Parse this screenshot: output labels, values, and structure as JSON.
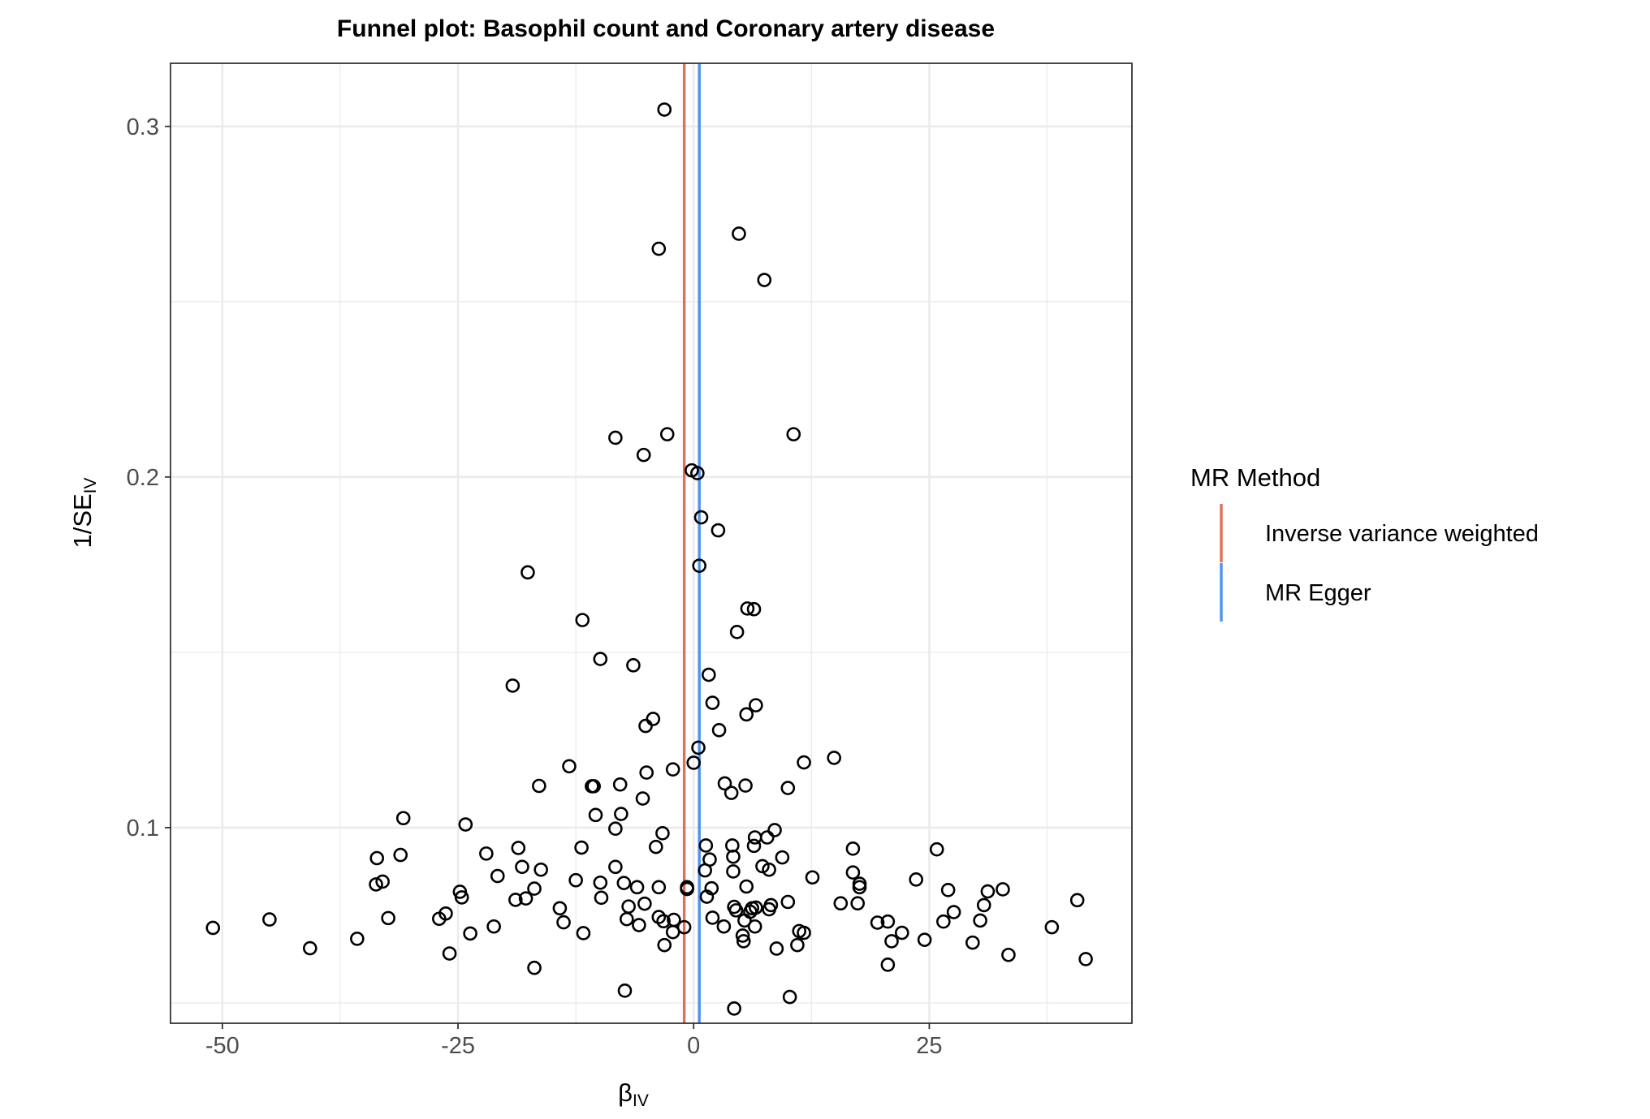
{
  "chart_data": {
    "type": "scatter",
    "title": "Funnel plot: Basophil count and Coronary artery disease",
    "xlabel": {
      "main": "β",
      "sub": "IV"
    },
    "ylabel": {
      "main": "1/SE",
      "sub": "IV"
    },
    "xlim": [
      -55.5,
      46.5
    ],
    "ylim": [
      0.0442,
      0.318
    ],
    "x_ticks": [
      {
        "value": -50,
        "label": "-50"
      },
      {
        "value": -25,
        "label": "-25"
      },
      {
        "value": 0,
        "label": "0"
      },
      {
        "value": 25,
        "label": "25"
      }
    ],
    "x_minor_ticks": [
      -37.5,
      -12.5,
      12.5,
      37.5
    ],
    "y_ticks": [
      {
        "value": 0.1,
        "label": "0.1"
      },
      {
        "value": 0.2,
        "label": "0.2"
      },
      {
        "value": 0.3,
        "label": "0.3"
      }
    ],
    "y_minor_ticks": [
      0.05,
      0.15,
      0.25
    ],
    "grid": true,
    "legend": {
      "title": "MR Method",
      "position": "right",
      "entries": [
        {
          "label": "Inverse variance weighted",
          "color": "#E06E5B"
        },
        {
          "label": "MR Egger",
          "color": "#4C92EE"
        }
      ]
    },
    "vlines": [
      {
        "method": "Inverse variance weighted",
        "x": -1.0,
        "color": "#E06E5B"
      },
      {
        "method": "MR Egger",
        "x": 0.6,
        "color": "#4C92EE"
      }
    ],
    "points": [
      {
        "x": -3.1,
        "y": 0.3048
      },
      {
        "x": 4.8,
        "y": 0.2694
      },
      {
        "x": -3.7,
        "y": 0.2651
      },
      {
        "x": 7.5,
        "y": 0.2562
      },
      {
        "x": -8.3,
        "y": 0.2112
      },
      {
        "x": -2.8,
        "y": 0.2122
      },
      {
        "x": 10.6,
        "y": 0.2122
      },
      {
        "x": -5.3,
        "y": 0.2063
      },
      {
        "x": -0.2,
        "y": 0.2019
      },
      {
        "x": 0.4,
        "y": 0.2011
      },
      {
        "x": 0.8,
        "y": 0.1885
      },
      {
        "x": 2.6,
        "y": 0.1848
      },
      {
        "x": 0.6,
        "y": 0.1747
      },
      {
        "x": -17.6,
        "y": 0.1728
      },
      {
        "x": 5.7,
        "y": 0.1625
      },
      {
        "x": 6.4,
        "y": 0.1623
      },
      {
        "x": -11.8,
        "y": 0.1592
      },
      {
        "x": 4.6,
        "y": 0.1558
      },
      {
        "x": -9.9,
        "y": 0.1481
      },
      {
        "x": -6.4,
        "y": 0.1463
      },
      {
        "x": 1.6,
        "y": 0.1436
      },
      {
        "x": -19.2,
        "y": 0.1405
      },
      {
        "x": 2.0,
        "y": 0.1356
      },
      {
        "x": 6.6,
        "y": 0.1349
      },
      {
        "x": 5.6,
        "y": 0.1323
      },
      {
        "x": -4.3,
        "y": 0.131
      },
      {
        "x": -5.1,
        "y": 0.129
      },
      {
        "x": 2.7,
        "y": 0.1278
      },
      {
        "x": 0.5,
        "y": 0.1228
      },
      {
        "x": 11.7,
        "y": 0.1186
      },
      {
        "x": 14.9,
        "y": 0.1199
      },
      {
        "x": 0.0,
        "y": 0.1185
      },
      {
        "x": -13.2,
        "y": 0.1175
      },
      {
        "x": -2.2,
        "y": 0.1166
      },
      {
        "x": -5.0,
        "y": 0.1157
      },
      {
        "x": 3.3,
        "y": 0.1126
      },
      {
        "x": -16.4,
        "y": 0.1119
      },
      {
        "x": -10.8,
        "y": 0.1118
      },
      {
        "x": -10.6,
        "y": 0.1118
      },
      {
        "x": -7.8,
        "y": 0.1123
      },
      {
        "x": 5.5,
        "y": 0.112
      },
      {
        "x": 10.0,
        "y": 0.1113
      },
      {
        "x": 4.0,
        "y": 0.1099
      },
      {
        "x": -5.4,
        "y": 0.1083
      },
      {
        "x": -10.4,
        "y": 0.1036
      },
      {
        "x": -7.7,
        "y": 0.1039
      },
      {
        "x": -30.8,
        "y": 0.1027
      },
      {
        "x": -24.2,
        "y": 0.1009
      },
      {
        "x": -8.3,
        "y": 0.0997
      },
      {
        "x": 8.6,
        "y": 0.0993
      },
      {
        "x": -3.3,
        "y": 0.0984
      },
      {
        "x": 6.5,
        "y": 0.0972
      },
      {
        "x": 7.8,
        "y": 0.0972
      },
      {
        "x": 1.3,
        "y": 0.0949
      },
      {
        "x": 4.1,
        "y": 0.0949
      },
      {
        "x": 6.4,
        "y": 0.0948
      },
      {
        "x": -4.0,
        "y": 0.0945
      },
      {
        "x": -11.9,
        "y": 0.0943
      },
      {
        "x": -18.6,
        "y": 0.0942
      },
      {
        "x": 16.9,
        "y": 0.094
      },
      {
        "x": 25.8,
        "y": 0.0938
      },
      {
        "x": -22.0,
        "y": 0.0926
      },
      {
        "x": -31.1,
        "y": 0.0922
      },
      {
        "x": -33.6,
        "y": 0.0913
      },
      {
        "x": 1.7,
        "y": 0.0909
      },
      {
        "x": 4.2,
        "y": 0.0917
      },
      {
        "x": 9.4,
        "y": 0.0915
      },
      {
        "x": -18.2,
        "y": 0.0888
      },
      {
        "x": -8.3,
        "y": 0.0888
      },
      {
        "x": 7.3,
        "y": 0.089
      },
      {
        "x": -16.2,
        "y": 0.088
      },
      {
        "x": 1.2,
        "y": 0.0878
      },
      {
        "x": 4.2,
        "y": 0.0875
      },
      {
        "x": 8.0,
        "y": 0.088
      },
      {
        "x": 16.9,
        "y": 0.0872
      },
      {
        "x": -20.8,
        "y": 0.0862
      },
      {
        "x": 12.6,
        "y": 0.0858
      },
      {
        "x": 23.6,
        "y": 0.0852
      },
      {
        "x": -12.5,
        "y": 0.085
      },
      {
        "x": -33.0,
        "y": 0.0846
      },
      {
        "x": -33.7,
        "y": 0.0838
      },
      {
        "x": -9.9,
        "y": 0.0843
      },
      {
        "x": -7.4,
        "y": 0.0842
      },
      {
        "x": 17.6,
        "y": 0.084
      },
      {
        "x": 17.6,
        "y": 0.083
      },
      {
        "x": -6.0,
        "y": 0.083
      },
      {
        "x": -3.7,
        "y": 0.083
      },
      {
        "x": -0.7,
        "y": 0.083
      },
      {
        "x": -0.7,
        "y": 0.0825
      },
      {
        "x": 5.6,
        "y": 0.0832
      },
      {
        "x": 1.9,
        "y": 0.0827
      },
      {
        "x": -16.9,
        "y": 0.0826
      },
      {
        "x": -24.8,
        "y": 0.0817
      },
      {
        "x": 27.0,
        "y": 0.0822
      },
      {
        "x": 32.8,
        "y": 0.0824
      },
      {
        "x": 31.2,
        "y": 0.0818
      },
      {
        "x": -24.6,
        "y": 0.0801
      },
      {
        "x": -9.8,
        "y": 0.08
      },
      {
        "x": -18.9,
        "y": 0.0794
      },
      {
        "x": -17.8,
        "y": 0.0798
      },
      {
        "x": 1.4,
        "y": 0.0803
      },
      {
        "x": 40.7,
        "y": 0.0793
      },
      {
        "x": -5.2,
        "y": 0.0783
      },
      {
        "x": 10.0,
        "y": 0.0788
      },
      {
        "x": 15.6,
        "y": 0.0784
      },
      {
        "x": 17.4,
        "y": 0.0784
      },
      {
        "x": 30.8,
        "y": 0.0779
      },
      {
        "x": -14.2,
        "y": 0.077
      },
      {
        "x": -6.9,
        "y": 0.0775
      },
      {
        "x": 4.3,
        "y": 0.0774
      },
      {
        "x": 8.2,
        "y": 0.0779
      },
      {
        "x": 6.2,
        "y": 0.077
      },
      {
        "x": 6.6,
        "y": 0.0772
      },
      {
        "x": 8.0,
        "y": 0.0767
      },
      {
        "x": 4.5,
        "y": 0.0764
      },
      {
        "x": 6.0,
        "y": 0.076
      },
      {
        "x": 27.6,
        "y": 0.0759
      },
      {
        "x": -26.3,
        "y": 0.0755
      },
      {
        "x": -32.4,
        "y": 0.0742
      },
      {
        "x": -27.0,
        "y": 0.074
      },
      {
        "x": -7.1,
        "y": 0.0739
      },
      {
        "x": -3.7,
        "y": 0.0745
      },
      {
        "x": 2.0,
        "y": 0.0743
      },
      {
        "x": -3.2,
        "y": 0.0733
      },
      {
        "x": -2.1,
        "y": 0.0737
      },
      {
        "x": 5.4,
        "y": 0.0735
      },
      {
        "x": 30.4,
        "y": 0.0735
      },
      {
        "x": -45.0,
        "y": 0.0738
      },
      {
        "x": -13.8,
        "y": 0.073
      },
      {
        "x": 19.5,
        "y": 0.0729
      },
      {
        "x": 20.6,
        "y": 0.0732
      },
      {
        "x": 26.5,
        "y": 0.0732
      },
      {
        "x": -5.8,
        "y": 0.0722
      },
      {
        "x": -1.0,
        "y": 0.0716
      },
      {
        "x": 3.2,
        "y": 0.0718
      },
      {
        "x": 6.5,
        "y": 0.0718
      },
      {
        "x": -21.2,
        "y": 0.0718
      },
      {
        "x": -51.0,
        "y": 0.0714
      },
      {
        "x": 38.0,
        "y": 0.0716
      },
      {
        "x": -2.2,
        "y": 0.0702
      },
      {
        "x": -23.7,
        "y": 0.0698
      },
      {
        "x": -11.7,
        "y": 0.0699
      },
      {
        "x": 5.2,
        "y": 0.0692
      },
      {
        "x": 11.2,
        "y": 0.0705
      },
      {
        "x": 11.7,
        "y": 0.07
      },
      {
        "x": 22.1,
        "y": 0.07
      },
      {
        "x": -35.7,
        "y": 0.0683
      },
      {
        "x": 5.3,
        "y": 0.0676
      },
      {
        "x": -3.1,
        "y": 0.0665
      },
      {
        "x": 11.0,
        "y": 0.0665
      },
      {
        "x": 21.0,
        "y": 0.0676
      },
      {
        "x": 24.5,
        "y": 0.068
      },
      {
        "x": 29.6,
        "y": 0.0672
      },
      {
        "x": -40.7,
        "y": 0.0656
      },
      {
        "x": 8.8,
        "y": 0.0655
      },
      {
        "x": -25.9,
        "y": 0.0641
      },
      {
        "x": 33.4,
        "y": 0.0637
      },
      {
        "x": 41.6,
        "y": 0.0625
      },
      {
        "x": 20.6,
        "y": 0.0609
      },
      {
        "x": -16.9,
        "y": 0.06
      },
      {
        "x": -7.3,
        "y": 0.0535
      },
      {
        "x": 10.2,
        "y": 0.0517
      },
      {
        "x": 4.3,
        "y": 0.0484
      }
    ]
  }
}
